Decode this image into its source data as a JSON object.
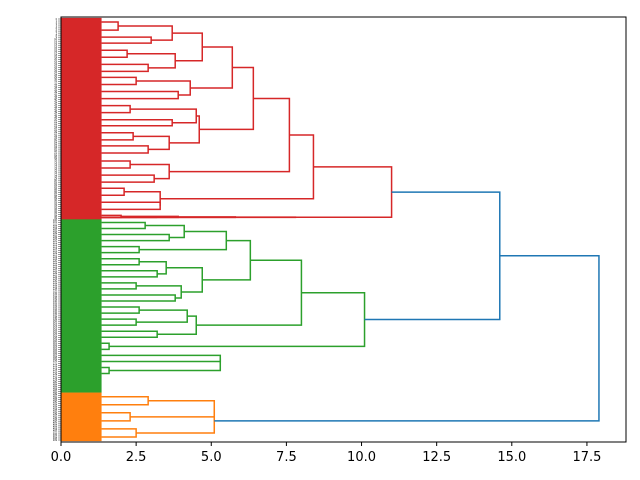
{
  "chart_data": {
    "type": "dendrogram",
    "orientation": "horizontal",
    "title": "",
    "xlabel": "",
    "ylabel": "",
    "xlim": [
      0,
      18.8
    ],
    "xticks": [
      0.0,
      2.5,
      5.0,
      7.5,
      10.0,
      12.5,
      15.0,
      17.5
    ],
    "xtick_labels": [
      "0.0",
      "2.5",
      "5.0",
      "7.5",
      "10.0",
      "12.5",
      "15.0",
      "17.5"
    ],
    "leaf_count": 210,
    "clusters": [
      {
        "color": "#d62728",
        "leaf_start": 0,
        "leaf_end": 99
      },
      {
        "color": "#2ca02c",
        "leaf_start": 100,
        "leaf_end": 185
      },
      {
        "color": "#ff7f0e",
        "leaf_start": 186,
        "leaf_end": 209
      }
    ],
    "link_color_above_threshold": "#1f77b4",
    "links": [
      {
        "left": 0,
        "right": 1,
        "height": 1.0,
        "color": "#d62728"
      },
      {
        "left": 2,
        "right": 3,
        "height": 1.2,
        "color": "#d62728"
      },
      {
        "left": 4,
        "right": 5,
        "height": 1.6,
        "color": "#d62728"
      },
      {
        "left": 6,
        "right": 7,
        "height": 1.5,
        "color": "#d62728"
      },
      {
        "left": 8,
        "right": 9,
        "height": 2.1,
        "color": "#d62728"
      },
      {
        "left": 10,
        "right": 11,
        "height": 3.1,
        "color": "#d62728"
      },
      {
        "left": 12,
        "right": 13,
        "height": 3.9,
        "color": "#d62728"
      },
      {
        "left": 14,
        "right": 15,
        "height": 2.3,
        "color": "#d62728"
      },
      {
        "left": 16,
        "right": 17,
        "height": 3.2,
        "color": "#d62728"
      },
      {
        "left": 18,
        "right": 19,
        "height": 4.7,
        "color": "#d62728"
      },
      {
        "left": 20,
        "right": 21,
        "height": 2.8,
        "color": "#d62728"
      },
      {
        "left": 22,
        "right": 23,
        "height": 3.8,
        "color": "#d62728"
      },
      {
        "left": 24,
        "right": 25,
        "height": 5.7,
        "color": "#d62728"
      },
      {
        "left": 26,
        "right": 27,
        "height": 2.9,
        "color": "#d62728"
      },
      {
        "left": 28,
        "right": 29,
        "height": 3.7,
        "color": "#d62728"
      },
      {
        "left": 30,
        "right": 31,
        "height": 4.5,
        "color": "#d62728"
      },
      {
        "left": 32,
        "right": 33,
        "height": 2.4,
        "color": "#d62728"
      },
      {
        "left": 34,
        "right": 35,
        "height": 3.0,
        "color": "#d62728"
      },
      {
        "left": 36,
        "right": 37,
        "height": 3.7,
        "color": "#d62728"
      },
      {
        "left": 38,
        "right": 39,
        "height": 6.4,
        "color": "#d62728"
      },
      {
        "left": 40,
        "right": 41,
        "height": 7.6,
        "color": "#d62728"
      },
      {
        "left": 42,
        "right": 43,
        "height": 3.3,
        "color": "#d62728"
      },
      {
        "left": 44,
        "right": 45,
        "height": 8.4,
        "color": "#d62728"
      },
      {
        "left": 46,
        "right": 47,
        "height": 3.9,
        "color": "#d62728"
      },
      {
        "left": 48,
        "right": 49,
        "height": 5.8,
        "color": "#d62728"
      },
      {
        "left": 50,
        "right": 51,
        "height": 3.3,
        "color": "#d62728"
      },
      {
        "left": 52,
        "right": 53,
        "height": 7.8,
        "color": "#d62728"
      },
      {
        "left": 54,
        "right": 55,
        "height": 11.0,
        "color": "#d62728"
      },
      {
        "left": 56,
        "right": 57,
        "height": 2.8,
        "color": "#2ca02c"
      },
      {
        "left": 58,
        "right": 59,
        "height": 4.1,
        "color": "#2ca02c"
      },
      {
        "left": 60,
        "right": 61,
        "height": 5.5,
        "color": "#2ca02c"
      },
      {
        "left": 62,
        "right": 63,
        "height": 3.2,
        "color": "#2ca02c"
      },
      {
        "left": 64,
        "right": 65,
        "height": 3.4,
        "color": "#2ca02c"
      },
      {
        "left": 66,
        "right": 67,
        "height": 4.0,
        "color": "#2ca02c"
      },
      {
        "left": 68,
        "right": 69,
        "height": 4.7,
        "color": "#2ca02c"
      },
      {
        "left": 70,
        "right": 71,
        "height": 6.3,
        "color": "#2ca02c"
      },
      {
        "left": 72,
        "right": 73,
        "height": 4.2,
        "color": "#2ca02c"
      },
      {
        "left": 74,
        "right": 75,
        "height": 4.5,
        "color": "#2ca02c"
      },
      {
        "left": 76,
        "right": 77,
        "height": 8.0,
        "color": "#2ca02c"
      },
      {
        "left": 78,
        "right": 79,
        "height": 5.3,
        "color": "#2ca02c"
      },
      {
        "left": 80,
        "right": 81,
        "height": 10.1,
        "color": "#2ca02c"
      },
      {
        "left": 82,
        "right": 83,
        "height": 2.9,
        "color": "#ff7f0e"
      },
      {
        "left": 84,
        "right": 85,
        "height": 2.3,
        "color": "#ff7f0e"
      },
      {
        "left": 86,
        "right": 87,
        "height": 5.1,
        "color": "#ff7f0e"
      },
      {
        "left": 88,
        "right": 89,
        "height": 14.6,
        "color": "#1f77b4"
      },
      {
        "left": 90,
        "right": 91,
        "height": 17.9,
        "color": "#1f77b4"
      }
    ]
  }
}
